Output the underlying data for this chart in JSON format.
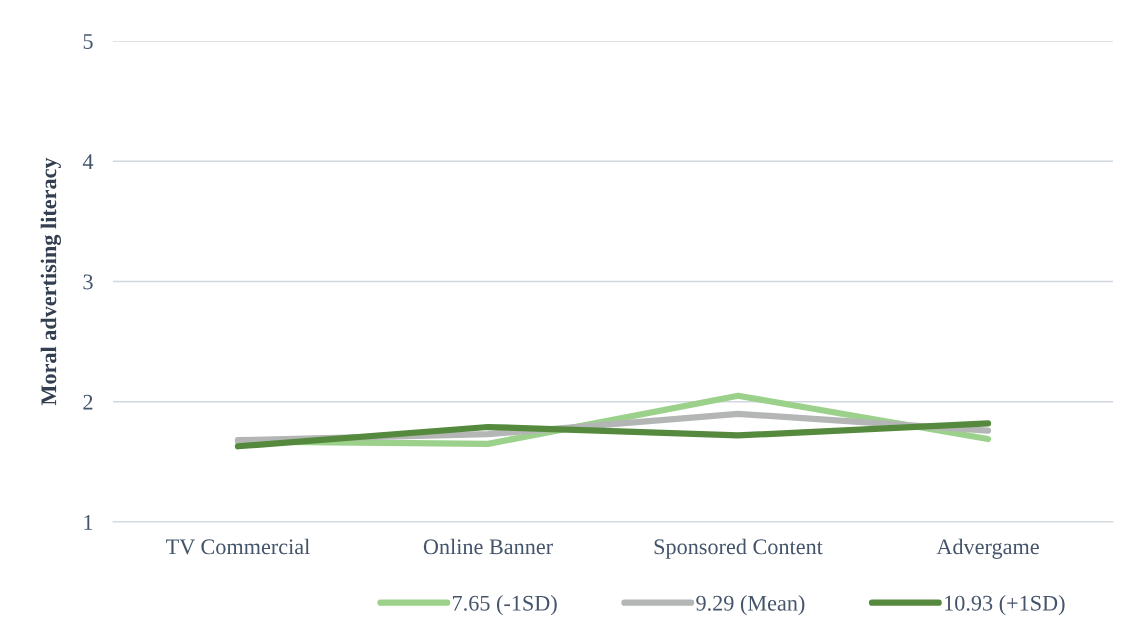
{
  "chart_data": {
    "type": "line",
    "ylabel": "Moral advertising literacy",
    "categories": [
      "TV Commercial",
      "Online Banner",
      "Sponsored Content",
      "Advergame"
    ],
    "series": [
      {
        "name": "7.65 (-1SD)",
        "color": "#9bd18b",
        "values": [
          1.67,
          1.65,
          2.05,
          1.69
        ]
      },
      {
        "name": "9.29 (Mean)",
        "color": "#b4b6b5",
        "values": [
          1.68,
          1.73,
          1.9,
          1.76
        ]
      },
      {
        "name": "10.93 (+1SD)",
        "color": "#558a3e",
        "values": [
          1.63,
          1.79,
          1.72,
          1.82
        ]
      }
    ],
    "ylim": [
      1,
      5
    ],
    "yticks": [
      1,
      2,
      3,
      4,
      5
    ],
    "grid": "y",
    "legend": "bottom",
    "marker": "none",
    "line_style": "solid"
  }
}
